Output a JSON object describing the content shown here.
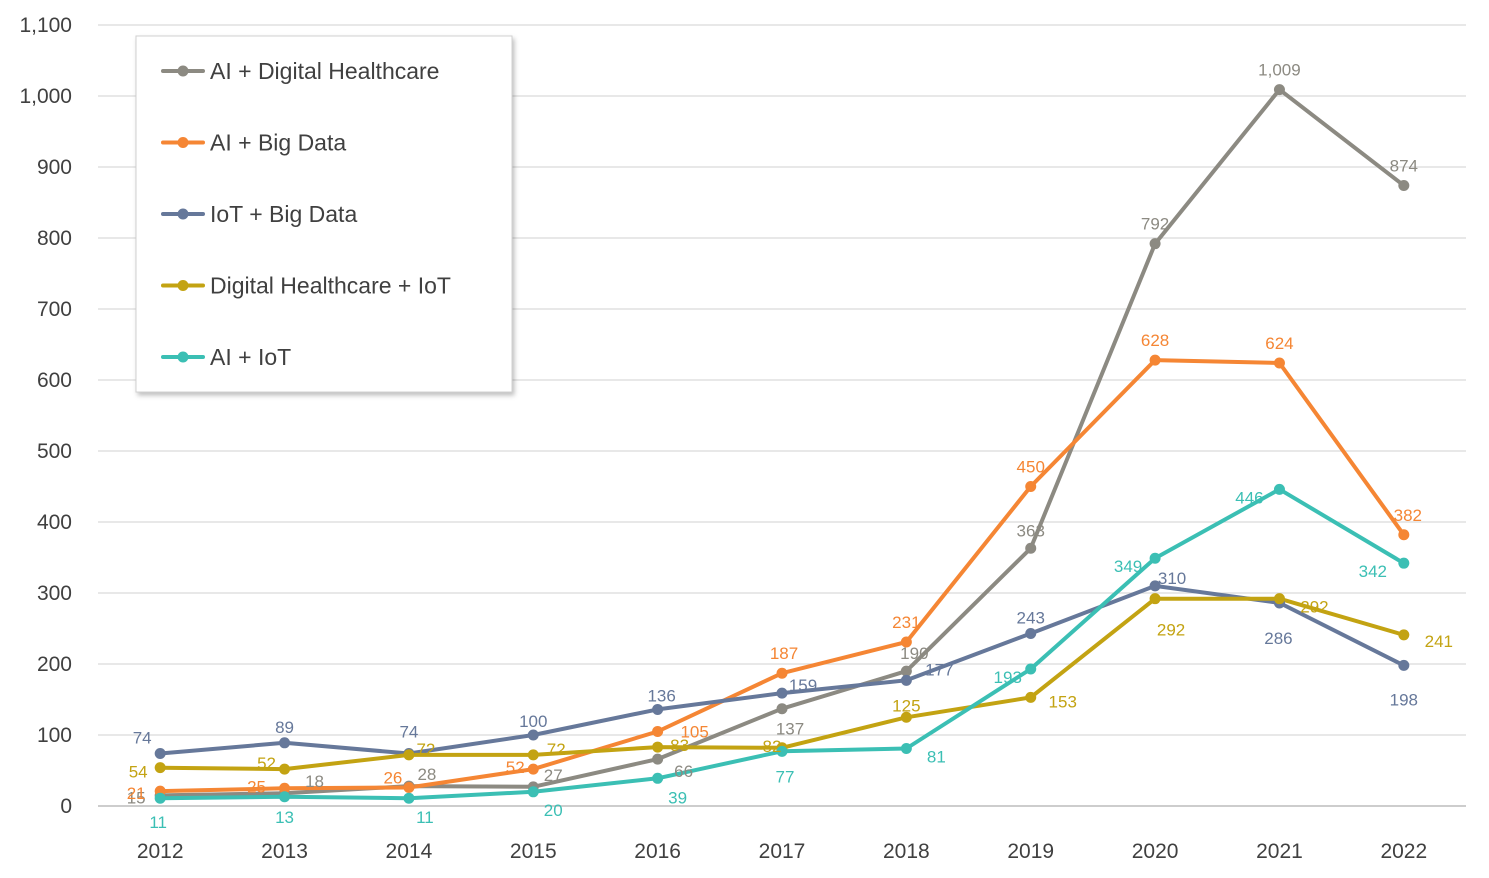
{
  "chart_data": {
    "type": "line",
    "categories": [
      "2012",
      "2013",
      "2014",
      "2015",
      "2016",
      "2017",
      "2018",
      "2019",
      "2020",
      "2021",
      "2022"
    ],
    "ylim": [
      0,
      1100
    ],
    "yticks": [
      0,
      100,
      200,
      300,
      400,
      500,
      600,
      700,
      800,
      900,
      1000,
      1100
    ],
    "ytick_labels": [
      "0",
      "100",
      "200",
      "300",
      "400",
      "500",
      "600",
      "700",
      "800",
      "900",
      "1,000",
      "1,100"
    ],
    "grid": "horizontal",
    "legend_position": "top-left",
    "series": [
      {
        "name": "AI + Digital Healthcare",
        "color": "#8c8a82",
        "values": [
          15,
          18,
          28,
          27,
          66,
          137,
          190,
          363,
          792,
          1009,
          874
        ],
        "labels": [
          "15",
          "18",
          "28",
          "27",
          "66",
          "137",
          "190",
          "363",
          "792",
          "1,009",
          "874"
        ]
      },
      {
        "name": "AI + Big Data",
        "color": "#f58634",
        "values": [
          21,
          25,
          26,
          52,
          105,
          187,
          231,
          450,
          628,
          624,
          382
        ],
        "labels": [
          "21",
          "25",
          "26",
          "52",
          "105",
          "187",
          "231",
          "450",
          "628",
          "624",
          "382"
        ]
      },
      {
        "name": "IoT + Big Data",
        "color": "#66789a",
        "values": [
          74,
          89,
          74,
          100,
          136,
          159,
          177,
          243,
          310,
          286,
          198
        ],
        "labels": [
          "74",
          "89",
          "74",
          "100",
          "136",
          "159",
          "177",
          "243",
          "310",
          "286",
          "198"
        ]
      },
      {
        "name": "Digital Healthcare + IoT",
        "color": "#c3a312",
        "values": [
          54,
          52,
          72,
          72,
          83,
          82,
          125,
          153,
          292,
          292,
          241
        ],
        "labels": [
          "54",
          "52",
          "72",
          "72",
          "83",
          "82",
          "125",
          "153",
          "292",
          "292",
          "241"
        ]
      },
      {
        "name": "AI + IoT",
        "color": "#3bbfb4",
        "values": [
          11,
          13,
          11,
          20,
          39,
          77,
          81,
          193,
          349,
          446,
          342
        ],
        "labels": [
          "11",
          "13",
          "11",
          "20",
          "39",
          "77",
          "81",
          "193",
          "349",
          "446",
          "342"
        ]
      }
    ]
  }
}
